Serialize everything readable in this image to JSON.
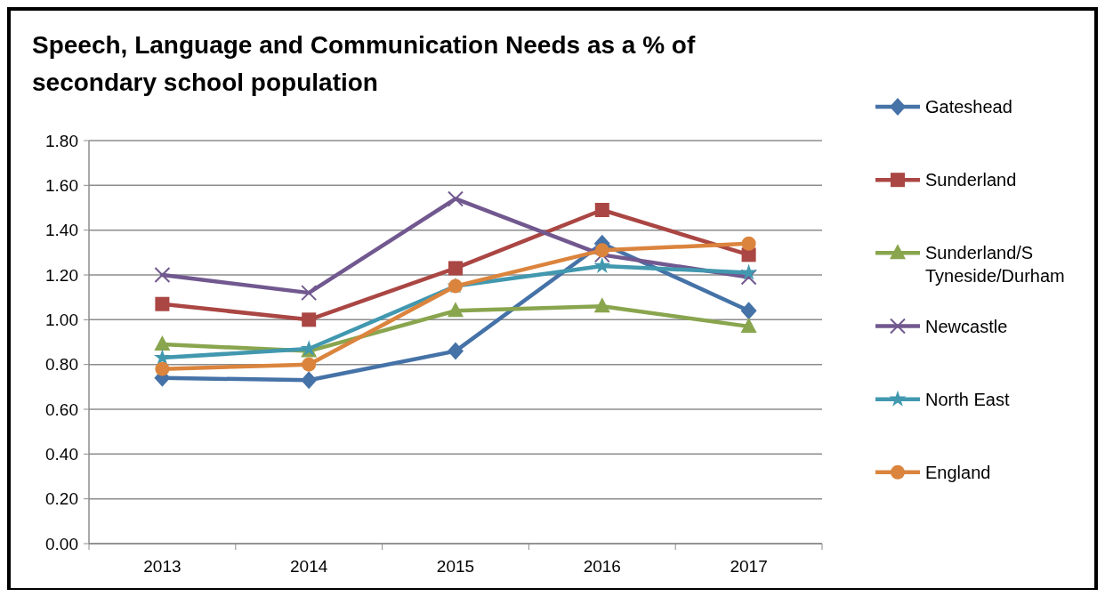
{
  "chart_data": {
    "type": "line",
    "title": "Speech, Language and Communication Needs as a % of secondary school population",
    "categories": [
      "2013",
      "2014",
      "2015",
      "2016",
      "2017"
    ],
    "series": [
      {
        "name": "Gateshead",
        "color": "#4572a7",
        "marker": "diamond",
        "values": [
          0.74,
          0.73,
          0.86,
          1.34,
          1.04
        ]
      },
      {
        "name": "Sunderland",
        "color": "#aa4643",
        "marker": "square",
        "values": [
          1.07,
          1.0,
          1.23,
          1.49,
          1.29
        ]
      },
      {
        "name": "Sunderland/S Tyneside/Durham",
        "color": "#89a54e",
        "marker": "triangle",
        "values": [
          0.89,
          0.86,
          1.04,
          1.06,
          0.97
        ]
      },
      {
        "name": "Newcastle",
        "color": "#71588f",
        "marker": "cross",
        "values": [
          1.2,
          1.12,
          1.54,
          1.29,
          1.19
        ]
      },
      {
        "name": "North East",
        "color": "#4198af",
        "marker": "star",
        "values": [
          0.83,
          0.87,
          1.15,
          1.24,
          1.21
        ]
      },
      {
        "name": "England",
        "color": "#db843d",
        "marker": "circle",
        "values": [
          0.78,
          0.8,
          1.15,
          1.31,
          1.34
        ]
      }
    ],
    "ylim": [
      0,
      1.8
    ],
    "yticks": [
      {
        "value": 0,
        "label": "0.00"
      },
      {
        "value": 0.2,
        "label": "0.20"
      },
      {
        "value": 0.4,
        "label": "0.40"
      },
      {
        "value": 0.6,
        "label": "0.60"
      },
      {
        "value": 0.8,
        "label": "0.80"
      },
      {
        "value": 1.0,
        "label": "1.00"
      },
      {
        "value": 1.2,
        "label": "1.20"
      },
      {
        "value": 1.4,
        "label": "1.40"
      },
      {
        "value": 1.6,
        "label": "1.60"
      },
      {
        "value": 1.8,
        "label": "1.80"
      }
    ],
    "grid": "y",
    "legend": "right"
  }
}
